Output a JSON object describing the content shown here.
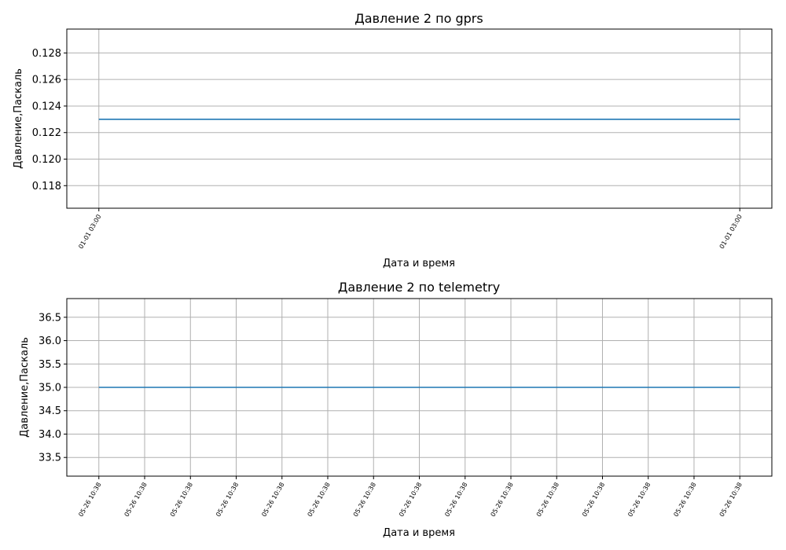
{
  "chart_data": [
    {
      "type": "line",
      "title": "Давление 2 по gprs",
      "xlabel": "Дата и время",
      "ylabel": "Давление,Паскаль",
      "ylim": [
        0.1163,
        0.1298
      ],
      "yticks": [
        0.118,
        0.12,
        0.122,
        0.124,
        0.126,
        0.128
      ],
      "ytick_labels": [
        "0.118",
        "0.120",
        "0.122",
        "0.124",
        "0.126",
        "0.128"
      ],
      "xlim": [
        -0.05,
        1.05
      ],
      "xticks": [
        0,
        1
      ],
      "xtick_labels": [
        "01-01 03:00",
        "01-01 03:00"
      ],
      "x": [
        0,
        1
      ],
      "series": [
        {
          "values": [
            0.123,
            0.123
          ],
          "color": "#1f77b4"
        }
      ],
      "grid": true
    },
    {
      "type": "line",
      "title": "Давление 2 по telemetry",
      "xlabel": "Дата и время",
      "ylabel": "Давление,Паскаль",
      "ylim": [
        33.1,
        36.9
      ],
      "yticks": [
        33.5,
        34.0,
        34.5,
        35.0,
        35.5,
        36.0,
        36.5
      ],
      "ytick_labels": [
        "33.5",
        "34.0",
        "34.5",
        "35.0",
        "35.5",
        "36.0",
        "36.5"
      ],
      "xlim": [
        -0.7,
        14.7
      ],
      "xticks": [
        0,
        1,
        2,
        3,
        4,
        5,
        6,
        7,
        8,
        9,
        10,
        11,
        12,
        13,
        14
      ],
      "xtick_labels": [
        "05-26 10:38",
        "05-26 10:38",
        "05-26 10:38",
        "05-26 10:38",
        "05-26 10:38",
        "05-26 10:38",
        "05-26 10:38",
        "05-26 10:38",
        "05-26 10:38",
        "05-26 10:38",
        "05-26 10:38",
        "05-26 10:38",
        "05-26 10:38",
        "05-26 10:38",
        "05-26 10:38"
      ],
      "x": [
        0,
        1,
        2,
        3,
        4,
        5,
        6,
        7,
        8,
        9,
        10,
        11,
        12,
        13,
        14
      ],
      "series": [
        {
          "values": [
            35,
            35,
            35,
            35,
            35,
            35,
            35,
            35,
            35,
            35,
            35,
            35,
            35,
            35,
            35
          ],
          "color": "#1f77b4"
        }
      ],
      "grid": true
    }
  ]
}
